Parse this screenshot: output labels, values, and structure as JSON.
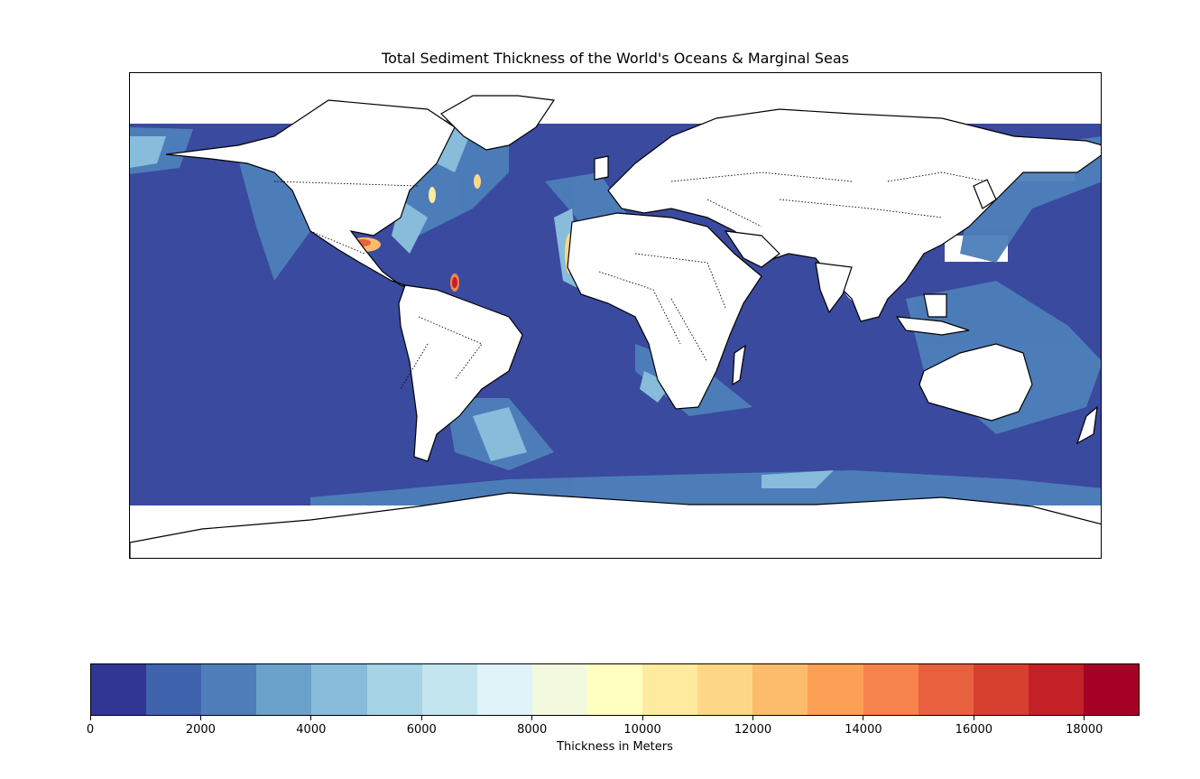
{
  "title": "Total Sediment Thickness of the World's Oceans & Marginal Seas",
  "chart_data": {
    "type": "heatmap",
    "title": "Total Sediment Thickness of the World's Oceans & Marginal Seas",
    "projection": "equirectangular (plate carree)",
    "colormap": "RdYlBu_r",
    "colorbar": {
      "label": "Thickness in Meters",
      "range": [
        0,
        19000
      ],
      "step": 1000,
      "ticks": [
        "0",
        "2000",
        "4000",
        "6000",
        "8000",
        "10000",
        "12000",
        "14000",
        "16000",
        "18000"
      ],
      "colors": [
        "#313695",
        "#4063ad",
        "#4e7fba",
        "#6aa2cb",
        "#87bcdb",
        "#a6d3e6",
        "#c3e5ef",
        "#e0f3f8",
        "#f2f9de",
        "#ffffbf",
        "#feeb9e",
        "#fed786",
        "#fdbc6c",
        "#fca055",
        "#f6834b",
        "#e7613e",
        "#d73f2f",
        "#c32028",
        "#a50026"
      ]
    },
    "features": {
      "coastlines": true,
      "country_borders": "dotted",
      "gridlines": false
    },
    "colors": {
      "land": "#ffffff",
      "deep_ocean": "#313695",
      "thick_sediment": "#a50026"
    }
  }
}
